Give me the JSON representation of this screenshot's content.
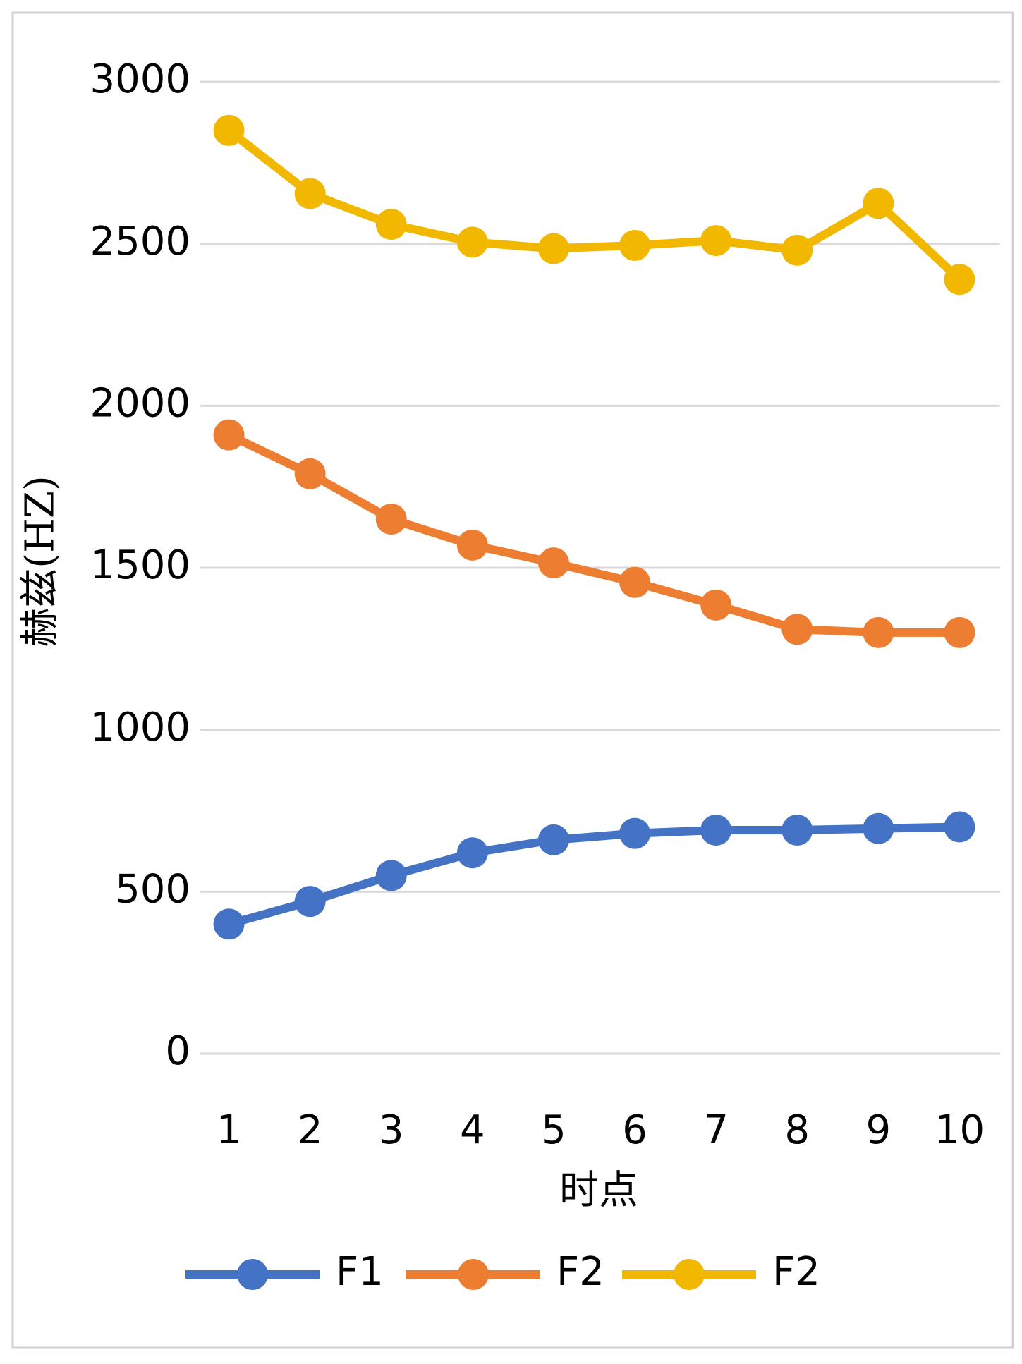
{
  "chart_data": {
    "type": "line",
    "x_label": "时点",
    "y_label": "赫兹(HZ)",
    "categories": [
      "1",
      "2",
      "3",
      "4",
      "5",
      "6",
      "7",
      "8",
      "9",
      "10"
    ],
    "series": [
      {
        "name": "F1",
        "color": "#4472c4",
        "values": [
          400,
          470,
          550,
          620,
          660,
          680,
          690,
          690,
          695,
          700
        ]
      },
      {
        "name": "F2",
        "color": "#ed7d31",
        "values": [
          1910,
          1790,
          1650,
          1570,
          1515,
          1455,
          1385,
          1310,
          1300,
          1300
        ]
      },
      {
        "name": "F2",
        "color": "#f2b800",
        "values": [
          2850,
          2655,
          2560,
          2505,
          2485,
          2495,
          2510,
          2480,
          2625,
          2390
        ]
      }
    ],
    "ylim": [
      0,
      3000
    ],
    "yticks": [
      0,
      500,
      1000,
      1500,
      2000,
      2500,
      3000
    ],
    "grid": true,
    "legend": "bottom"
  }
}
